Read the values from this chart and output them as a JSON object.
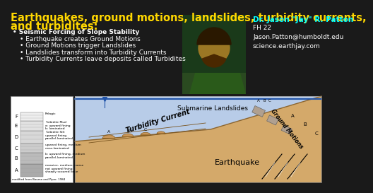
{
  "background_color": "#1a1a1a",
  "title_line1": "Earthquakes, ground motions, landslides, turbidity currents,",
  "title_line2": "and turbidites:",
  "title_color": "#ffd700",
  "title_fontsize": 10.5,
  "bullet_color": "#ffffff",
  "bullet_fontsize": 6.5,
  "bullets": [
    "Seismic Forcing of Slope Stability",
    "Earthquake creates Ground Motions",
    "Ground Motions trigger Landslides",
    "Landslides transform into Turbidity Currents",
    "Turbidity Currents leave deposits called Turbidites"
  ],
  "name_text": "Dr. Jason \"Jay\" R. Patton",
  "name_color": "#00ffff",
  "info_text": "FH 22\nJason.Patton@humboldt.edu\nscience.earthjay.com",
  "info_color": "#ffffff",
  "name_fontsize": 7.5,
  "info_fontsize": 6.5,
  "diagram_bg": "#d4a96a",
  "water_color": "#4a7ab5",
  "diagram_border": "#cccccc",
  "submarine_label": "Submarine Landslides",
  "turbidity_label": "Turbidity Current",
  "earthquake_label": "Earthquake",
  "ground_motion_label": "Ground Motions"
}
